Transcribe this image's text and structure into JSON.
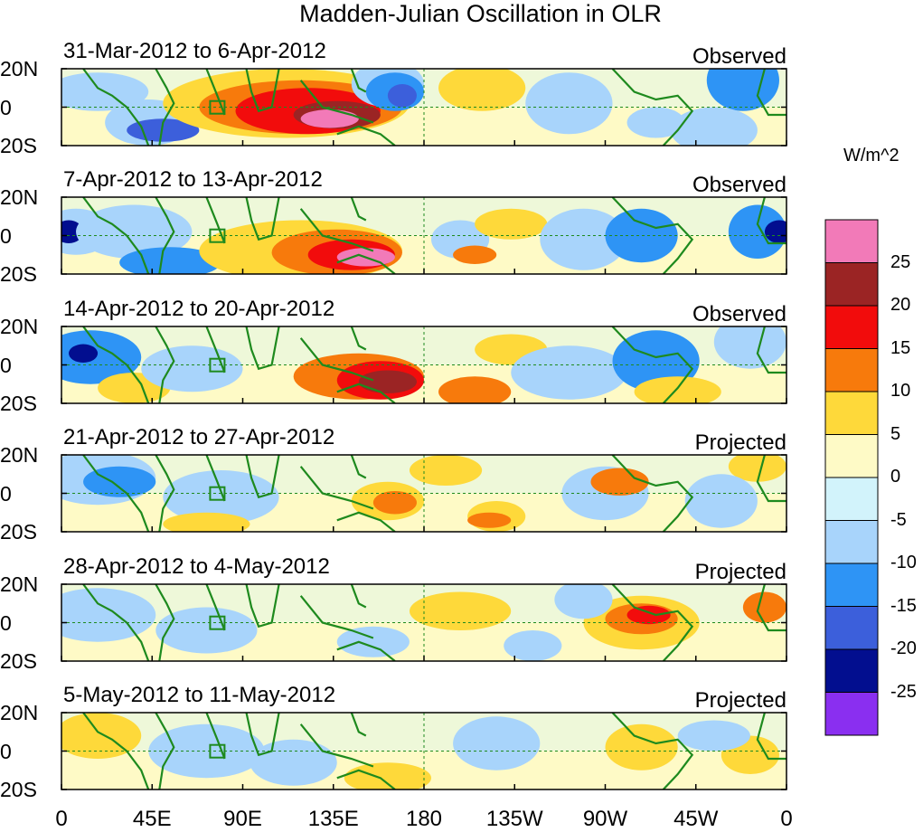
{
  "title": "Madden-Julian Oscillation in OLR",
  "lat_labels": [
    "20N",
    "0",
    "20S"
  ],
  "lon_labels": [
    "0",
    "45E",
    "90E",
    "135E",
    "180",
    "135W",
    "90W",
    "45W",
    "0"
  ],
  "colorbar": {
    "unit": "W/m^2",
    "tick_labels": [
      "25",
      "20",
      "15",
      "10",
      "5",
      "0",
      "-5",
      "-10",
      "-15",
      "-20",
      "-25"
    ],
    "colors_top_to_bottom": [
      "#f27ab8",
      "#9b2424",
      "#f20c0c",
      "#f77a0c",
      "#fed93a",
      "#fefac6",
      "#d2f3fb",
      "#a8d4fb",
      "#2e94f5",
      "#3c5fdb",
      "#020e8f",
      "#8a2ff0"
    ]
  },
  "panels": [
    {
      "period": "31-Mar-2012 to 6-Apr-2012",
      "status": "Observed"
    },
    {
      "period": "7-Apr-2012 to 13-Apr-2012",
      "status": "Observed"
    },
    {
      "period": "14-Apr-2012 to 20-Apr-2012",
      "status": "Observed"
    },
    {
      "period": "21-Apr-2012 to 27-Apr-2012",
      "status": "Projected"
    },
    {
      "period": "28-Apr-2012 to 4-May-2012",
      "status": "Projected"
    },
    {
      "period": "5-May-2012 to 11-May-2012",
      "status": "Projected"
    }
  ],
  "colors": {
    "coastline": "#1e8a1e",
    "reference_line": "#1e8a1e",
    "frame": "#000000"
  }
}
